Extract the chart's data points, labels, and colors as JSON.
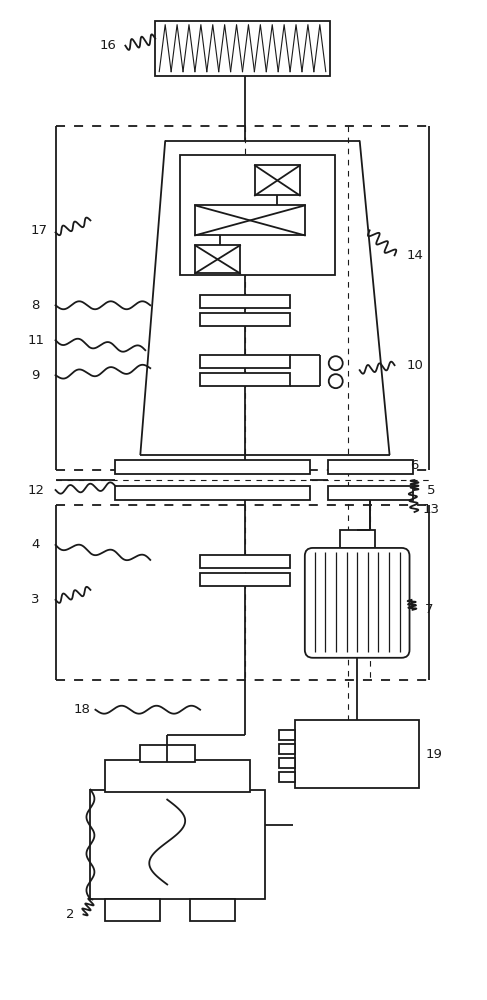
{
  "bg_color": "#ffffff",
  "lc": "#1a1a1a",
  "lw": 1.3,
  "fig_w": 4.87,
  "fig_h": 10.0,
  "dpi": 100
}
